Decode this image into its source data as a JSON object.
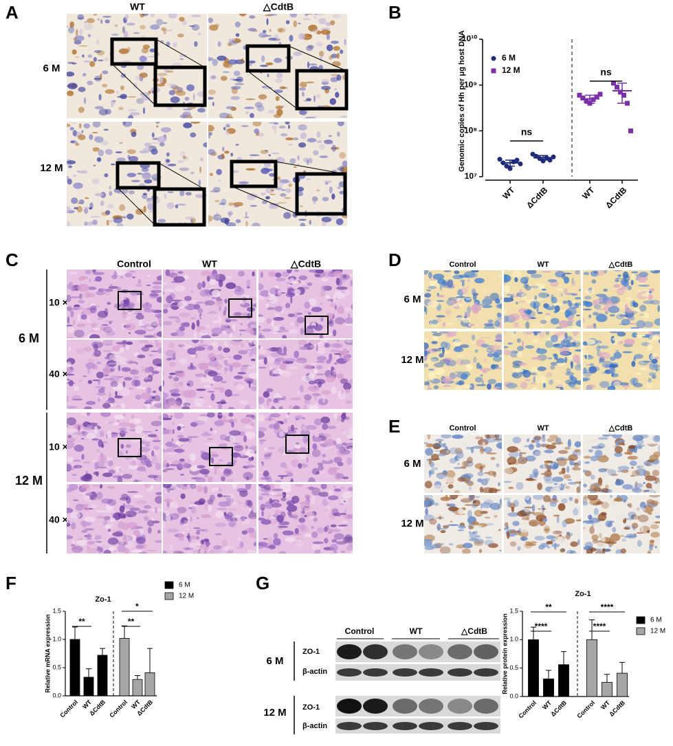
{
  "figure": {
    "panel_labels": [
      "A",
      "B",
      "C",
      "D",
      "E",
      "F",
      "G"
    ],
    "A": {
      "columns": [
        "WT",
        "△CdtB"
      ],
      "rows": [
        "6 M",
        "12 M"
      ]
    },
    "C": {
      "columns": [
        "Control",
        "WT",
        "△CdtB"
      ],
      "groups": [
        "6 M",
        "12 M"
      ],
      "magnifications": [
        "10 ×",
        "40 ×",
        "10 ×",
        "40 ×"
      ]
    },
    "D": {
      "columns": [
        "Control",
        "WT",
        "△CdtB"
      ],
      "rows": [
        "6 M",
        "12 M"
      ]
    },
    "E": {
      "columns": [
        "Control",
        "WT",
        "△CdtB"
      ],
      "rows": [
        "6 M",
        "12 M"
      ]
    },
    "G_blot": {
      "columns": [
        "Control",
        "WT",
        "△CdtB"
      ],
      "rows": [
        "6 M",
        "12 M"
      ],
      "proteins": [
        "ZO-1",
        "β-actin",
        "ZO-1",
        "β-actin"
      ]
    }
  },
  "chart_data": [
    {
      "type": "scatter",
      "ylabel": "Genomic copies of Hh per μg host DNA",
      "categories": [
        "WT",
        "ΔCdtB",
        "WT",
        "ΔCdtB"
      ],
      "log_scale": true,
      "ylim": [
        10000000,
        10000000000
      ],
      "yticks": [
        {
          "value": 10000000,
          "label": "10⁷"
        },
        {
          "value": 100000000,
          "label": "10⁸"
        },
        {
          "value": 1000000000,
          "label": "10⁹"
        },
        {
          "value": 10000000000,
          "label": "10¹⁰"
        }
      ],
      "series": [
        {
          "name": "6 M",
          "color": "#1f2a7a",
          "marker": "circle",
          "values": [
            [
              24000000,
              20000000,
              17000000,
              15000000,
              21000000,
              23000000,
              19000000
            ],
            [
              31000000,
              28000000,
              25000000,
              22000000,
              26000000,
              23000000,
              27000000
            ],
            null,
            null
          ],
          "means": [
            20000000,
            26000000,
            null,
            null
          ],
          "sd": [
            3000000,
            3000000,
            null,
            null
          ]
        },
        {
          "name": "12 M",
          "color": "#7b2fa8",
          "marker": "square",
          "values": [
            null,
            null,
            [
              600000000,
              520000000,
              450000000,
              400000000,
              480000000,
              550000000,
              630000000
            ],
            [
              1100000000,
              900000000,
              700000000,
              600000000,
              400000000,
              100000000
            ]
          ],
          "means": [
            null,
            null,
            500000000,
            750000000
          ],
          "sd": [
            null,
            null,
            100000000,
            350000000
          ]
        }
      ],
      "annotations": [
        "ns",
        "ns"
      ]
    },
    {
      "type": "bar",
      "title": "Zo-1",
      "ylabel": "Relative mRNA expression",
      "categories": [
        "Control",
        "WT",
        "ΔCdtB",
        "Control",
        "WT",
        "ΔCdtB"
      ],
      "ylim": [
        0,
        1.5
      ],
      "yticks": [
        {
          "value": 0,
          "label": "0.0"
        },
        {
          "value": 0.5,
          "label": "0.5"
        },
        {
          "value": 1,
          "label": "1.0"
        },
        {
          "value": 1.5,
          "label": "1.5"
        }
      ],
      "series": [
        {
          "name": "6 M",
          "color": "#000000",
          "values": [
            1.0,
            0.33,
            0.72,
            null,
            null,
            null
          ],
          "errors": [
            0.22,
            0.15,
            0.12,
            null,
            null,
            null
          ]
        },
        {
          "name": "12 M",
          "color": "#a6a6a6",
          "values": [
            null,
            null,
            null,
            1.02,
            0.29,
            0.41
          ],
          "errors": [
            null,
            null,
            null,
            0.22,
            0.07,
            0.43
          ]
        }
      ],
      "annotations": [
        "**",
        "**",
        "*"
      ]
    },
    {
      "type": "bar",
      "title": "Zo-1",
      "ylabel": "Relative protein expression",
      "categories": [
        "Control",
        "WT",
        "ΔCdtB",
        "Control",
        "WT",
        "ΔCdtB"
      ],
      "ylim": [
        0,
        1.5
      ],
      "yticks": [
        {
          "value": 0,
          "label": "0.0"
        },
        {
          "value": 0.5,
          "label": "0.5"
        },
        {
          "value": 1,
          "label": "1.0"
        },
        {
          "value": 1.5,
          "label": "1.5"
        }
      ],
      "series": [
        {
          "name": "6 M",
          "color": "#000000",
          "values": [
            1.0,
            0.31,
            0.56,
            null,
            null,
            null
          ],
          "errors": [
            0.22,
            0.15,
            0.23,
            null,
            null,
            null
          ]
        },
        {
          "name": "12 M",
          "color": "#a6a6a6",
          "values": [
            null,
            null,
            null,
            1.0,
            0.25,
            0.41
          ],
          "errors": [
            null,
            null,
            null,
            0.35,
            0.14,
            0.19
          ]
        }
      ],
      "annotations": [
        "****",
        "**",
        "****",
        "****"
      ]
    }
  ]
}
